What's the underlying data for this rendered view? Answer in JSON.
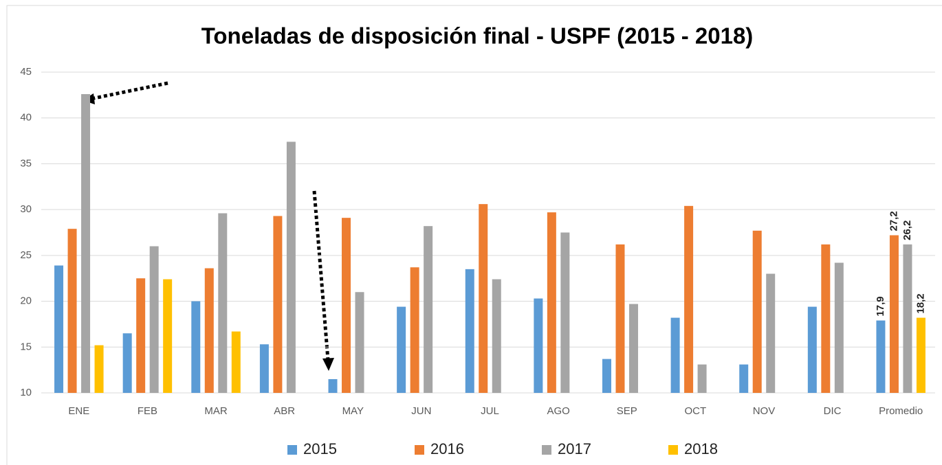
{
  "chart_data": {
    "type": "bar",
    "title": "Toneladas de disposición final - USPF (2015 - 2018)",
    "categories": [
      "ENE",
      "FEB",
      "MAR",
      "ABR",
      "MAY",
      "JUN",
      "JUL",
      "AGO",
      "SEP",
      "OCT",
      "NOV",
      "DIC",
      "Promedio"
    ],
    "series": [
      {
        "name": "2015",
        "color": "#5b9bd5",
        "values": [
          23.9,
          16.5,
          20.0,
          15.3,
          11.5,
          19.4,
          23.5,
          20.3,
          13.7,
          18.2,
          13.1,
          19.4,
          17.9
        ],
        "value_labels": [
          null,
          null,
          null,
          null,
          null,
          null,
          null,
          null,
          null,
          null,
          null,
          null,
          "17,9"
        ]
      },
      {
        "name": "2016",
        "color": "#ed7d31",
        "values": [
          27.9,
          22.5,
          23.6,
          29.3,
          29.1,
          23.7,
          30.6,
          29.7,
          26.2,
          30.4,
          27.7,
          26.2,
          27.2
        ],
        "value_labels": [
          null,
          null,
          null,
          null,
          null,
          null,
          null,
          null,
          null,
          null,
          null,
          null,
          "27,2"
        ]
      },
      {
        "name": "2017",
        "color": "#a5a5a5",
        "values": [
          42.6,
          26.0,
          29.6,
          37.4,
          21.0,
          28.2,
          22.4,
          27.5,
          19.7,
          13.1,
          23.0,
          24.2,
          26.2
        ],
        "value_labels": [
          null,
          null,
          null,
          null,
          null,
          null,
          null,
          null,
          null,
          null,
          null,
          null,
          "26,2"
        ]
      },
      {
        "name": "2018",
        "color": "#ffc000",
        "values": [
          15.2,
          22.4,
          16.7,
          null,
          null,
          null,
          null,
          null,
          null,
          null,
          null,
          null,
          18.2
        ],
        "value_labels": [
          null,
          null,
          null,
          null,
          null,
          null,
          null,
          null,
          null,
          null,
          null,
          null,
          "18,2"
        ]
      }
    ],
    "ylim": [
      10,
      45
    ],
    "yticks": [
      10,
      15,
      20,
      25,
      30,
      35,
      40,
      45
    ],
    "grid": true,
    "legend": "bottom"
  }
}
